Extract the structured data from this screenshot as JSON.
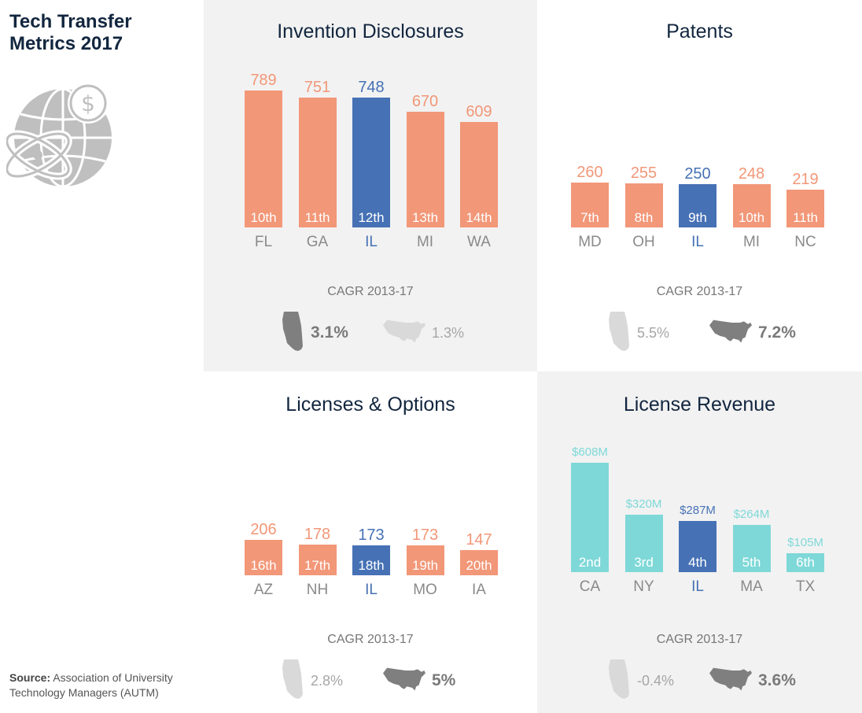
{
  "header": {
    "title_line1": "Tech Transfer",
    "title_line2": "Metrics 2017"
  },
  "source": {
    "label": "Source:",
    "line1": "Association of University",
    "line2": "Technology Managers (AUTM)"
  },
  "colors": {
    "salmon": "#f29778",
    "il_blue": "#4671b5",
    "teal": "#7fd8d8",
    "panel_gray": "#f2f2f2",
    "map_dark": "#7f7f7f",
    "map_light": "#d9d9d9"
  },
  "chart_data": [
    {
      "type": "bar",
      "title": "Invention Disclosures",
      "categories": [
        "FL",
        "GA",
        "IL",
        "MI",
        "WA"
      ],
      "values": [
        789,
        751,
        748,
        670,
        609
      ],
      "value_labels": [
        "789",
        "751",
        "748",
        "670",
        "609"
      ],
      "ranks": [
        "10th",
        "11th",
        "12th",
        "13th",
        "14th"
      ],
      "highlight": "IL",
      "bar_color": "salmon",
      "cagr_label": "CAGR 2013-17",
      "cagr_il": "3.1%",
      "cagr_us": "1.3%",
      "cagr_emphasis": "il"
    },
    {
      "type": "bar",
      "title": "Patents",
      "categories": [
        "MD",
        "OH",
        "IL",
        "MI",
        "NC"
      ],
      "values": [
        260,
        255,
        250,
        248,
        219
      ],
      "value_labels": [
        "260",
        "255",
        "250",
        "248",
        "219"
      ],
      "ranks": [
        "7th",
        "8th",
        "9th",
        "10th",
        "11th"
      ],
      "highlight": "IL",
      "bar_color": "salmon",
      "cagr_label": "CAGR 2013-17",
      "cagr_il": "5.5%",
      "cagr_us": "7.2%",
      "cagr_emphasis": "us"
    },
    {
      "type": "bar",
      "title": "Licenses & Options",
      "categories": [
        "AZ",
        "NH",
        "IL",
        "MO",
        "IA"
      ],
      "values": [
        206,
        178,
        173,
        173,
        147
      ],
      "value_labels": [
        "206",
        "178",
        "173",
        "173",
        "147"
      ],
      "ranks": [
        "16th",
        "17th",
        "18th",
        "19th",
        "20th"
      ],
      "highlight": "IL",
      "bar_color": "salmon",
      "cagr_label": "CAGR 2013-17",
      "cagr_il": "2.8%",
      "cagr_us": "5%",
      "cagr_emphasis": "us"
    },
    {
      "type": "bar",
      "title": "License Revenue",
      "categories": [
        "CA",
        "NY",
        "IL",
        "MA",
        "TX"
      ],
      "values": [
        608,
        320,
        287,
        264,
        105
      ],
      "value_labels": [
        "$608M",
        "$320M",
        "$287M",
        "$264M",
        "$105M"
      ],
      "ranks": [
        "2nd",
        "3rd",
        "4th",
        "5th",
        "6th"
      ],
      "highlight": "IL",
      "bar_color": "teal",
      "cagr_label": "CAGR 2013-17",
      "cagr_il": "-0.4%",
      "cagr_us": "3.6%",
      "cagr_emphasis": "us"
    }
  ]
}
